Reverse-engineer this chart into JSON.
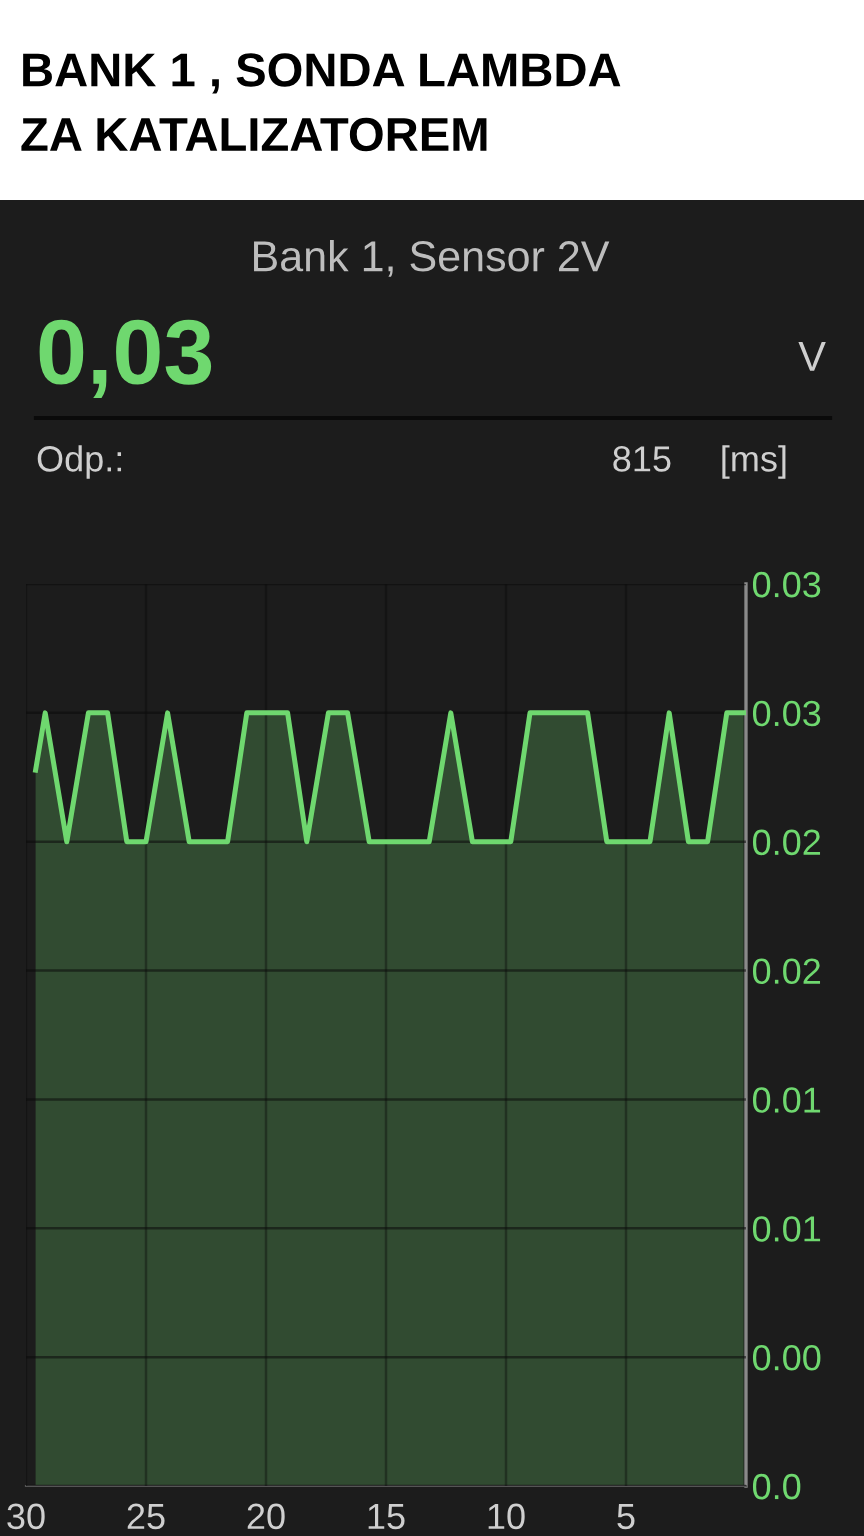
{
  "chart_data": {
    "type": "area",
    "title": "BANK 1 , SONDA LAMBDA\nZA KATALIZATOREM",
    "subtitle": "Bank 1, Sensor 2V",
    "annotations": [
      "0,03",
      "V",
      "Odp.:",
      "815",
      "[ms]"
    ],
    "x": [
      29.6,
      29.2,
      28.3,
      27.4,
      26.6,
      25.8,
      25.0,
      24.1,
      23.2,
      21.6,
      20.8,
      19.1,
      18.3,
      17.4,
      16.6,
      15.7,
      13.2,
      12.3,
      11.4,
      9.8,
      9.0,
      6.6,
      5.8,
      4.0,
      3.2,
      2.4,
      1.6,
      0.8,
      0.1
    ],
    "series": [
      {
        "color": "#6fd86f",
        "values": [
          0.025,
          0.027,
          0.0225,
          0.027,
          0.027,
          0.0225,
          0.0225,
          0.027,
          0.0225,
          0.0225,
          0.027,
          0.027,
          0.0225,
          0.027,
          0.027,
          0.0225,
          0.0225,
          0.027,
          0.0225,
          0.0225,
          0.027,
          0.027,
          0.0225,
          0.0225,
          0.027,
          0.0225,
          0.0225,
          0.027,
          0.027
        ]
      }
    ],
    "xlim": [
      30,
      0
    ],
    "xticks": [
      30,
      25,
      20,
      15,
      10,
      5
    ],
    "ylim": [
      0,
      0.0315
    ],
    "yticks": [
      {
        "value": 0,
        "label": "0.0"
      },
      {
        "value": 0.0045,
        "label": "0.00"
      },
      {
        "value": 0.009,
        "label": "0.01"
      },
      {
        "value": 0.0135,
        "label": "0.01"
      },
      {
        "value": 0.018,
        "label": "0.02"
      },
      {
        "value": 0.0225,
        "label": "0.02"
      },
      {
        "value": 0.027,
        "label": "0.03"
      },
      {
        "value": 0.0315,
        "label": "0.03"
      }
    ],
    "grid": true
  }
}
